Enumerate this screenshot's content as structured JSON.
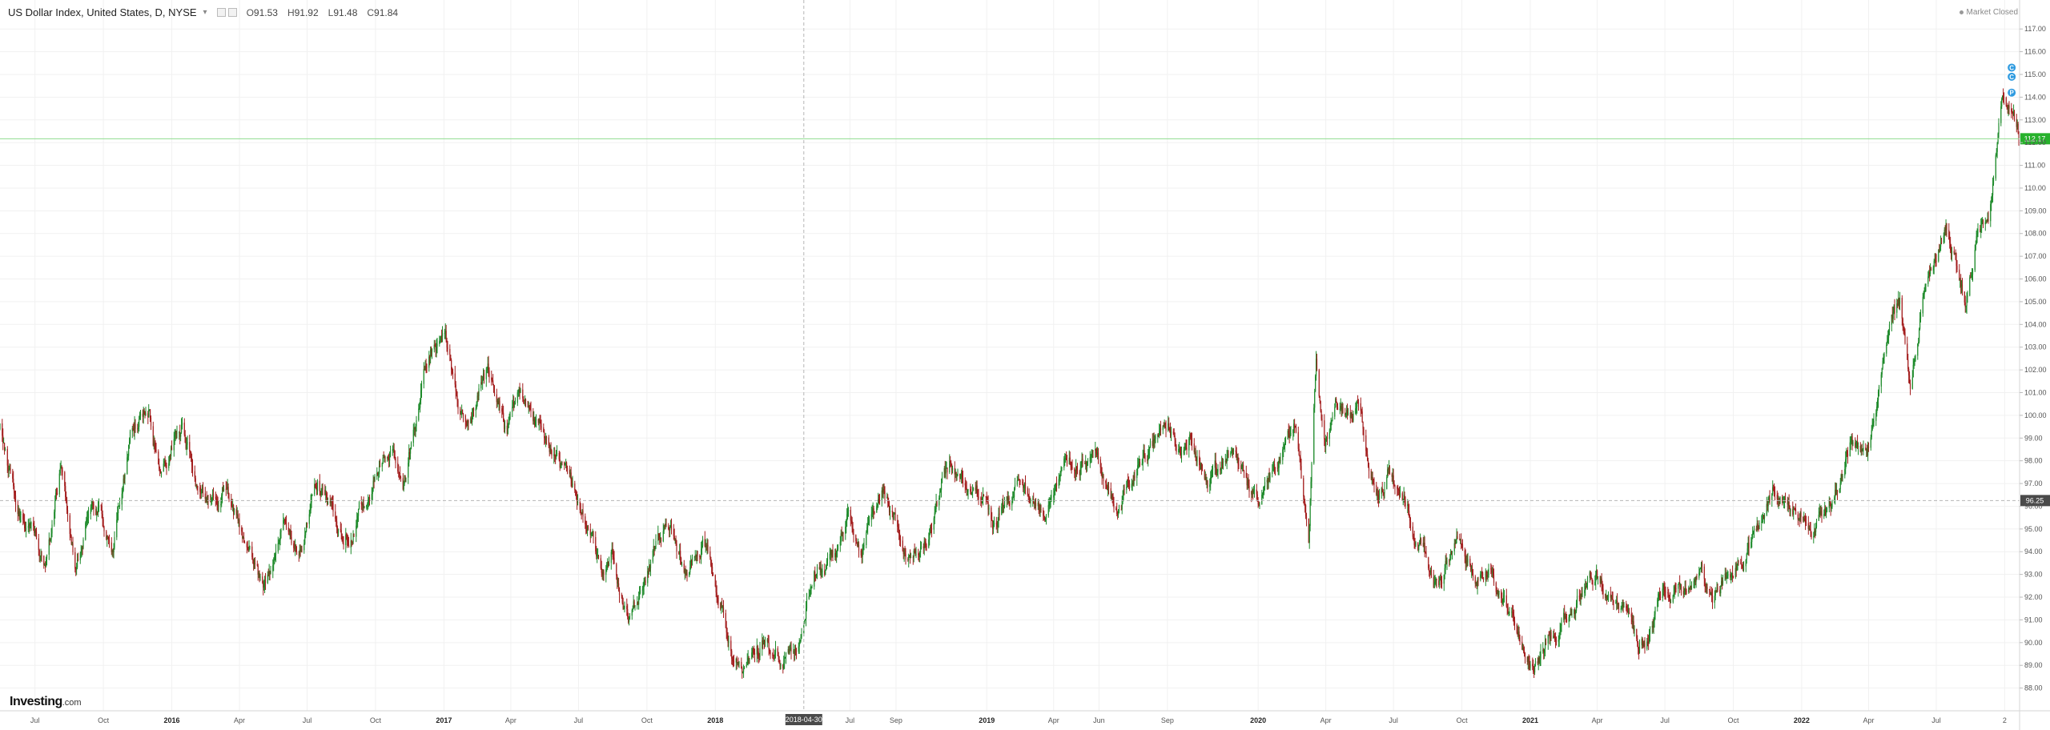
{
  "header": {
    "symbol_title": "US Dollar Index, United States, D, NYSE",
    "ohlc": [
      {
        "key": "O",
        "value": "91.53"
      },
      {
        "key": "H",
        "value": "91.92"
      },
      {
        "key": "L",
        "value": "91.48"
      },
      {
        "key": "C",
        "value": "91.84"
      }
    ]
  },
  "status": {
    "label": "Market Closed"
  },
  "brand": {
    "name": "Investing",
    "suffix": ".com"
  },
  "colors": {
    "up": "#1d8a2a",
    "down": "#a31d1d",
    "grid": "#f1f1f1",
    "last_price_line": "#8fdc8f",
    "last_price_tag": "#27b12c",
    "crosshair_tag": "#4a4a4a",
    "event_marker": "#2f9be0"
  },
  "chart_data": {
    "type": "candlestick",
    "title": "US Dollar Index, United States, D, NYSE",
    "timeframe": "D",
    "y_axis": {
      "ylim": [
        87.0,
        117.5
      ],
      "ticks": [
        "88.00",
        "89.00",
        "90.00",
        "91.00",
        "92.00",
        "93.00",
        "94.00",
        "95.00",
        "96.00",
        "97.00",
        "98.00",
        "99.00",
        "100.00",
        "101.00",
        "102.00",
        "103.00",
        "104.00",
        "105.00",
        "106.00",
        "107.00",
        "108.00",
        "109.00",
        "110.00",
        "111.00",
        "112.00",
        "113.00",
        "114.00",
        "115.00",
        "116.00",
        "117.00"
      ]
    },
    "x_axis": {
      "range": [
        "2015-05-15",
        "2022-10-21"
      ],
      "ticks": [
        {
          "date": "2015-07-01",
          "label": "Jul",
          "bold": false
        },
        {
          "date": "2015-10-01",
          "label": "Oct",
          "bold": false
        },
        {
          "date": "2016-01-01",
          "label": "2016",
          "bold": true
        },
        {
          "date": "2016-04-01",
          "label": "Apr",
          "bold": false
        },
        {
          "date": "2016-07-01",
          "label": "Jul",
          "bold": false
        },
        {
          "date": "2016-10-01",
          "label": "Oct",
          "bold": false
        },
        {
          "date": "2017-01-01",
          "label": "2017",
          "bold": true
        },
        {
          "date": "2017-04-01",
          "label": "Apr",
          "bold": false
        },
        {
          "date": "2017-07-01",
          "label": "Jul",
          "bold": false
        },
        {
          "date": "2017-10-01",
          "label": "Oct",
          "bold": false
        },
        {
          "date": "2018-01-01",
          "label": "2018",
          "bold": true
        },
        {
          "date": "2018-07-01",
          "label": "Jul",
          "bold": false
        },
        {
          "date": "2018-09-01",
          "label": "Sep",
          "bold": false
        },
        {
          "date": "2019-01-01",
          "label": "2019",
          "bold": true
        },
        {
          "date": "2019-04-01",
          "label": "Apr",
          "bold": false
        },
        {
          "date": "2019-06-01",
          "label": "Jun",
          "bold": false
        },
        {
          "date": "2019-09-01",
          "label": "Sep",
          "bold": false
        },
        {
          "date": "2020-01-01",
          "label": "2020",
          "bold": true
        },
        {
          "date": "2020-04-01",
          "label": "Apr",
          "bold": false
        },
        {
          "date": "2020-07-01",
          "label": "Jul",
          "bold": false
        },
        {
          "date": "2020-10-01",
          "label": "Oct",
          "bold": false
        },
        {
          "date": "2021-01-01",
          "label": "2021",
          "bold": true
        },
        {
          "date": "2021-04-01",
          "label": "Apr",
          "bold": false
        },
        {
          "date": "2021-07-01",
          "label": "Jul",
          "bold": false
        },
        {
          "date": "2021-10-01",
          "label": "Oct",
          "bold": false
        },
        {
          "date": "2022-01-01",
          "label": "2022",
          "bold": true
        },
        {
          "date": "2022-04-01",
          "label": "Apr",
          "bold": false
        },
        {
          "date": "2022-07-01",
          "label": "Jul",
          "bold": false
        },
        {
          "date": "2022-10-01",
          "label": "2",
          "bold": false
        }
      ]
    },
    "price_path": [
      [
        "2015-05-15",
        99.4
      ],
      [
        "2015-06-10",
        95.6
      ],
      [
        "2015-06-25",
        95.0
      ],
      [
        "2015-07-15",
        93.4
      ],
      [
        "2015-08-05",
        97.8
      ],
      [
        "2015-08-24",
        93.4
      ],
      [
        "2015-09-15",
        96.5
      ],
      [
        "2015-10-15",
        94.3
      ],
      [
        "2015-11-06",
        99.5
      ],
      [
        "2015-12-02",
        100.3
      ],
      [
        "2015-12-15",
        97.4
      ],
      [
        "2016-01-15",
        99.6
      ],
      [
        "2016-02-10",
        96.4
      ],
      [
        "2016-03-15",
        97.0
      ],
      [
        "2016-05-03",
        92.4
      ],
      [
        "2016-05-30",
        95.6
      ],
      [
        "2016-06-23",
        94.0
      ],
      [
        "2016-07-15",
        97.1
      ],
      [
        "2016-08-18",
        94.2
      ],
      [
        "2016-09-15",
        96.1
      ],
      [
        "2016-10-25",
        98.8
      ],
      [
        "2016-11-08",
        97.3
      ],
      [
        "2016-12-15",
        103.1
      ],
      [
        "2017-01-03",
        103.2
      ],
      [
        "2017-01-20",
        100.7
      ],
      [
        "2017-02-05",
        99.8
      ],
      [
        "2017-03-01",
        101.9
      ],
      [
        "2017-03-27",
        99.0
      ],
      [
        "2017-04-12",
        101.0
      ],
      [
        "2017-05-15",
        99.0
      ],
      [
        "2017-06-15",
        97.3
      ],
      [
        "2017-07-15",
        95.0
      ],
      [
        "2017-08-02",
        92.6
      ],
      [
        "2017-08-15",
        93.9
      ],
      [
        "2017-09-08",
        91.1
      ],
      [
        "2017-10-27",
        95.1
      ],
      [
        "2017-11-25",
        92.8
      ],
      [
        "2017-12-15",
        94.3
      ],
      [
        "2018-01-10",
        91.8
      ],
      [
        "2018-01-25",
        88.8
      ],
      [
        "2018-02-15",
        88.5
      ],
      [
        "2018-03-10",
        90.2
      ],
      [
        "2018-03-27",
        89.0
      ],
      [
        "2018-04-15",
        89.5
      ],
      [
        "2018-05-15",
        93.3
      ],
      [
        "2018-06-10",
        93.5
      ],
      [
        "2018-06-28",
        95.5
      ],
      [
        "2018-07-15",
        94.3
      ],
      [
        "2018-08-15",
        96.9
      ],
      [
        "2018-09-20",
        93.9
      ],
      [
        "2018-10-15",
        95.0
      ],
      [
        "2018-11-12",
        97.5
      ],
      [
        "2018-12-14",
        97.4
      ],
      [
        "2019-01-10",
        95.1
      ],
      [
        "2019-02-15",
        97.0
      ],
      [
        "2019-03-20",
        95.8
      ],
      [
        "2019-04-25",
        98.1
      ],
      [
        "2019-05-30",
        98.1
      ],
      [
        "2019-06-25",
        95.9
      ],
      [
        "2019-07-31",
        98.5
      ],
      [
        "2019-09-03",
        99.3
      ],
      [
        "2019-09-20",
        98.3
      ],
      [
        "2019-10-01",
        99.2
      ],
      [
        "2019-10-28",
        97.2
      ],
      [
        "2019-11-28",
        98.4
      ],
      [
        "2019-12-31",
        96.4
      ],
      [
        "2020-02-19",
        99.8
      ],
      [
        "2020-03-09",
        94.7
      ],
      [
        "2020-03-19",
        102.8
      ],
      [
        "2020-03-31",
        98.6
      ],
      [
        "2020-04-15",
        100.5
      ],
      [
        "2020-05-15",
        100.3
      ],
      [
        "2020-06-10",
        96.1
      ],
      [
        "2020-06-25",
        97.5
      ],
      [
        "2020-07-20",
        95.8
      ],
      [
        "2020-08-30",
        92.3
      ],
      [
        "2020-09-25",
        94.6
      ],
      [
        "2020-10-20",
        92.8
      ],
      [
        "2020-11-05",
        93.4
      ],
      [
        "2020-12-31",
        89.7
      ],
      [
        "2021-01-06",
        89.2
      ],
      [
        "2021-02-10",
        90.6
      ],
      [
        "2021-03-31",
        93.3
      ],
      [
        "2021-05-25",
        89.7
      ],
      [
        "2021-06-05",
        90.0
      ],
      [
        "2021-06-30",
        92.3
      ],
      [
        "2021-08-05",
        92.7
      ],
      [
        "2021-08-20",
        93.5
      ],
      [
        "2021-09-03",
        92.0
      ],
      [
        "2021-10-20",
        93.7
      ],
      [
        "2021-11-24",
        96.9
      ],
      [
        "2021-12-31",
        96.0
      ],
      [
        "2022-01-14",
        94.6
      ],
      [
        "2022-02-10",
        95.9
      ],
      [
        "2022-03-07",
        99.0
      ],
      [
        "2022-03-30",
        97.7
      ],
      [
        "2022-04-28",
        103.8
      ],
      [
        "2022-05-13",
        104.9
      ],
      [
        "2022-05-27",
        101.6
      ],
      [
        "2022-06-14",
        105.3
      ],
      [
        "2022-07-14",
        108.6
      ],
      [
        "2022-08-10",
        105.2
      ],
      [
        "2022-08-25",
        108.2
      ],
      [
        "2022-09-10",
        108.7
      ],
      [
        "2022-09-27",
        114.3
      ],
      [
        "2022-10-12",
        113.3
      ],
      [
        "2022-10-21",
        112.2
      ]
    ],
    "last_price": {
      "value": 112.17,
      "label": "112.17"
    },
    "reference_line": {
      "value": 96.25,
      "label": "96.25"
    },
    "crosshair": {
      "date": "2018-04-30",
      "label": "2018-04-30"
    },
    "event_markers": [
      {
        "date": "2022-10-05",
        "value": 115.3,
        "label": "C"
      },
      {
        "date": "2022-10-05",
        "value": 114.9,
        "label": "C"
      },
      {
        "date": "2022-10-05",
        "value": 114.2,
        "label": "P"
      }
    ]
  }
}
